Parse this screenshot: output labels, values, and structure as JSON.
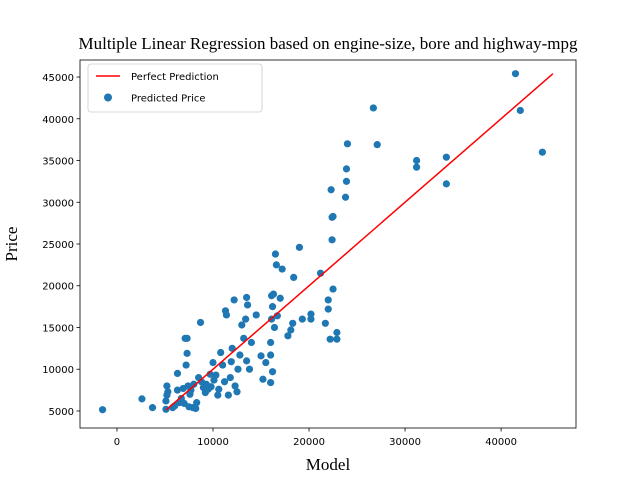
{
  "chart_data": {
    "type": "scatter",
    "title": "Multiple Linear Regression based on engine-size, bore and highway-mpg",
    "x_label": "Model",
    "y_label": "Price",
    "xlim": [
      -3850,
      47800
    ],
    "ylim": [
      2960,
      47040
    ],
    "xticks": [
      0,
      10000,
      20000,
      30000,
      40000
    ],
    "yticks": [
      5000,
      10000,
      15000,
      20000,
      25000,
      30000,
      35000,
      40000,
      45000
    ],
    "legend": "upper left",
    "series": [
      {
        "name": "Perfect Prediction",
        "type": "line",
        "color": "#ff0000",
        "x": [
          5118,
          45400
        ],
        "y": [
          5118,
          45400
        ]
      },
      {
        "name": "Predicted Price",
        "type": "scatter",
        "color": "#1f77b4",
        "x": [
          -1500,
          2600,
          3700,
          5100,
          5200,
          5200,
          5100,
          5300,
          5800,
          6000,
          6300,
          6300,
          6500,
          6700,
          6900,
          7000,
          7100,
          7200,
          7300,
          7300,
          7400,
          7500,
          7600,
          7700,
          7900,
          8000,
          8200,
          8300,
          8500,
          8700,
          8800,
          9000,
          9200,
          9300,
          9500,
          9700,
          9800,
          10000,
          10100,
          10300,
          10500,
          10600,
          10800,
          11000,
          11200,
          11300,
          11400,
          11600,
          11800,
          11900,
          12000,
          12200,
          12300,
          12500,
          12600,
          12800,
          13000,
          13200,
          13400,
          13500,
          13500,
          13600,
          13800,
          14000,
          14500,
          15000,
          15200,
          15500,
          16000,
          16100,
          16200,
          16300,
          16500,
          16600,
          16700,
          16000,
          16000,
          16200,
          16100,
          16400,
          17000,
          17200,
          17800,
          18100,
          18400,
          18300,
          19000,
          19300,
          20200,
          20200,
          21200,
          21700,
          22000,
          22200,
          22300,
          22400,
          22500,
          22400,
          22500,
          22000,
          22900,
          22900,
          24000,
          23900,
          23900,
          23800,
          26700,
          27100,
          31200,
          31200,
          34300,
          34300,
          41500,
          42000,
          44300
        ],
        "y": [
          5150,
          6450,
          5400,
          5200,
          8000,
          6900,
          6200,
          7300,
          5400,
          5600,
          7500,
          9500,
          6000,
          6500,
          7700,
          5900,
          13700,
          10500,
          11900,
          13700,
          8000,
          5500,
          7000,
          7500,
          5400,
          8200,
          5300,
          6000,
          9000,
          15600,
          8500,
          7800,
          7200,
          8200,
          7600,
          9400,
          7900,
          10800,
          8700,
          9300,
          6900,
          7600,
          12000,
          10500,
          8500,
          17000,
          16500,
          6900,
          9000,
          10900,
          12500,
          18300,
          8000,
          7300,
          10000,
          11700,
          15300,
          13700,
          16000,
          11000,
          18600,
          17700,
          10000,
          13200,
          16500,
          11600,
          8800,
          10800,
          13200,
          18800,
          17500,
          19000,
          23800,
          22500,
          16400,
          11700,
          8400,
          9700,
          16000,
          15000,
          18500,
          22000,
          14000,
          14700,
          21000,
          15500,
          24600,
          16000,
          16000,
          16600,
          21500,
          15500,
          17200,
          13600,
          31500,
          28200,
          28300,
          25500,
          19600,
          18300,
          14400,
          13600,
          37000,
          34000,
          32500,
          30600,
          41300,
          36900,
          35000,
          34200,
          35400,
          32200,
          45400,
          41000,
          36000
        ]
      }
    ]
  }
}
